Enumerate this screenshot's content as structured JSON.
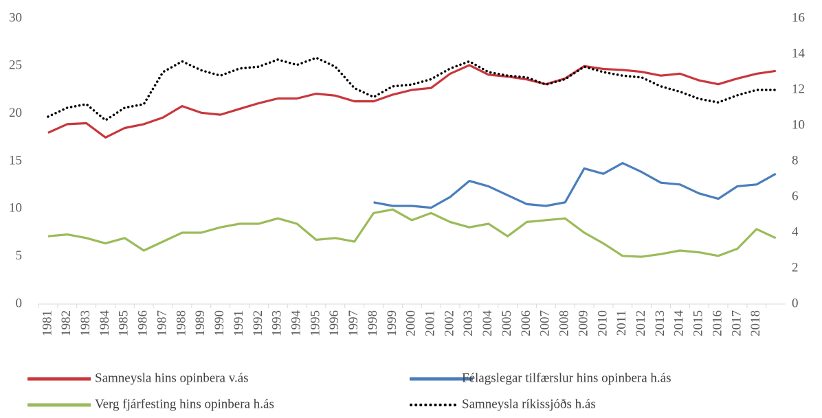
{
  "chart_data": {
    "type": "line",
    "categories": [
      "1981",
      "1982",
      "1983",
      "1984",
      "1985",
      "1986",
      "1987",
      "1988",
      "1989",
      "1990",
      "1991",
      "1992",
      "1993",
      "1994",
      "1995",
      "1996",
      "1997",
      "1998",
      "1999",
      "2000",
      "2001",
      "2002",
      "2003",
      "2004",
      "2005",
      "2006",
      "2007",
      "2008",
      "2009",
      "2010",
      "2011",
      "2012",
      "2013",
      "2014",
      "2015",
      "2016",
      "2017",
      "2018",
      null
    ],
    "ylim": [
      0,
      30
    ],
    "yticks": [
      0,
      5,
      10,
      15,
      20,
      25,
      30
    ],
    "y2lim": [
      0,
      16
    ],
    "y2ticks": [
      0,
      2,
      4,
      6,
      8,
      10,
      12,
      14,
      16
    ],
    "grid": false,
    "legend": "bottom",
    "series": [
      {
        "name": "Samneysla hins opinbera v.ás",
        "color": "#c8373c",
        "line_style": "solid",
        "values": [
          18.0,
          18.9,
          19.0,
          17.5,
          18.5,
          18.9,
          19.6,
          20.8,
          20.1,
          19.9,
          20.5,
          21.1,
          21.6,
          21.6,
          22.1,
          21.9,
          21.3,
          21.3,
          22.0,
          22.5,
          22.7,
          24.2,
          25.1,
          24.1,
          23.9,
          23.6,
          23.1,
          23.7,
          25.0,
          24.7,
          24.6,
          24.4,
          24.0,
          24.2,
          23.5,
          23.1,
          23.7,
          24.2,
          24.5
        ]
      },
      {
        "name": "Félagslegar tilfærslur hins opinbera h.ás",
        "color": "#4a7ebb",
        "axis": "y2",
        "line_style": "solid",
        "values": [
          null,
          null,
          null,
          null,
          null,
          null,
          null,
          null,
          null,
          null,
          null,
          null,
          null,
          null,
          null,
          null,
          null,
          5.7,
          5.5,
          5.5,
          5.4,
          6.0,
          6.9,
          6.6,
          6.1,
          5.6,
          5.5,
          5.7,
          7.6,
          7.3,
          7.9,
          7.4,
          6.8,
          6.7,
          6.2,
          5.9,
          6.6,
          6.7,
          7.3
        ]
      },
      {
        "name": "Verg fjárfesting hins opinbera h.ás",
        "color": "#9bbb59",
        "axis": "y2",
        "line_style": "solid",
        "values": [
          3.8,
          3.9,
          3.7,
          3.4,
          3.7,
          3.0,
          3.5,
          4.0,
          4.0,
          4.3,
          4.5,
          4.5,
          4.8,
          4.5,
          3.6,
          3.7,
          3.5,
          5.1,
          5.3,
          4.7,
          5.1,
          4.6,
          4.3,
          4.5,
          3.8,
          4.6,
          4.7,
          4.8,
          4.0,
          3.4,
          2.7,
          2.65,
          2.8,
          3.0,
          2.9,
          2.7,
          3.1,
          4.2,
          3.7
        ]
      },
      {
        "name": "Samneysla ríkissjóðs h.ás",
        "color": "#000000",
        "axis": "y2",
        "line_style": "dotted",
        "values": [
          10.5,
          11.0,
          11.2,
          10.3,
          11.0,
          11.2,
          13.0,
          13.6,
          13.1,
          12.8,
          13.2,
          13.3,
          13.7,
          13.4,
          13.8,
          13.3,
          12.1,
          11.6,
          12.2,
          12.3,
          12.6,
          13.2,
          13.6,
          13.0,
          12.8,
          12.7,
          12.3,
          12.6,
          13.3,
          13.0,
          12.8,
          12.7,
          12.2,
          11.9,
          11.5,
          11.3,
          11.7,
          12.0,
          12.0
        ]
      }
    ]
  }
}
